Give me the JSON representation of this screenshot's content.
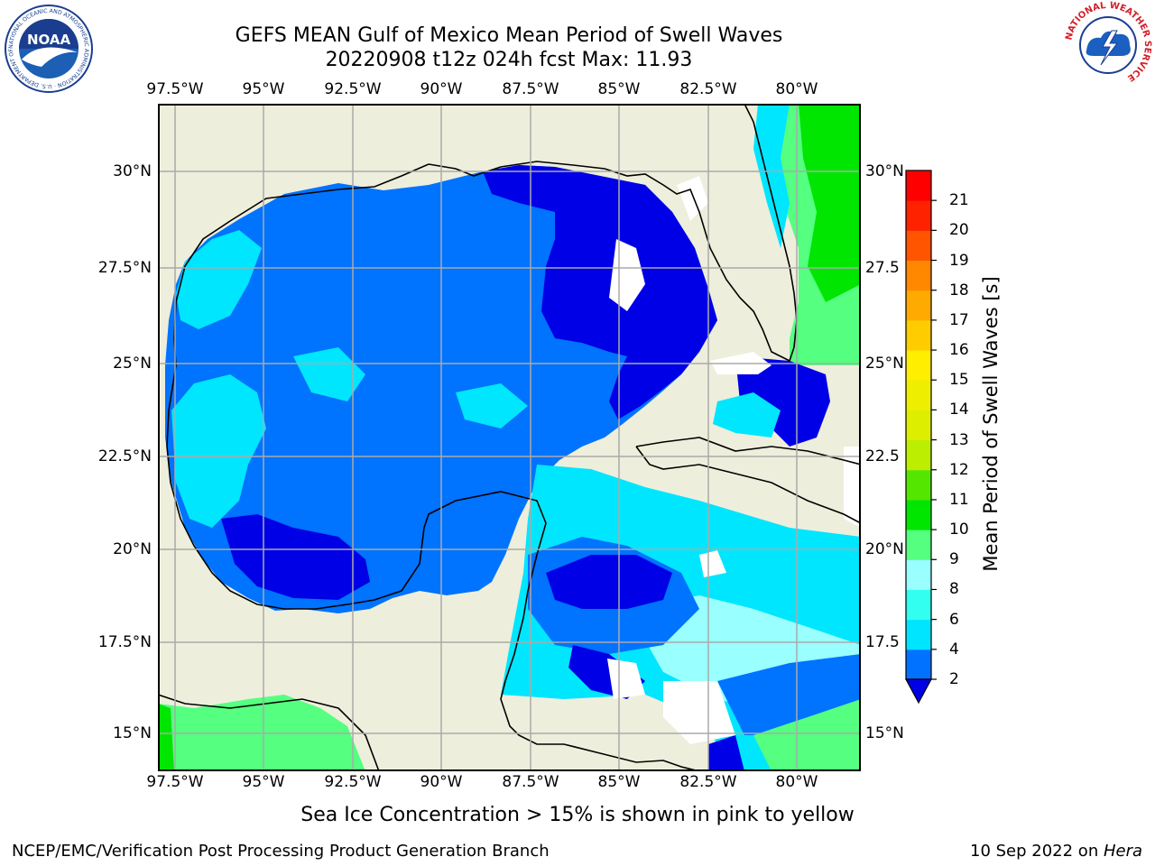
{
  "title": {
    "line1": "GEFS MEAN Gulf of Mexico Mean Period of Swell Waves",
    "line2": "20220908 t12z 024h fcst   Max: 11.93"
  },
  "map": {
    "longitude_labels": [
      "97.5°W",
      "95°W",
      "92.5°W",
      "90°W",
      "87.5°W",
      "85°W",
      "82.5°W",
      "80°W"
    ],
    "latitude_labels": [
      "30°N",
      "27.5°N",
      "25°N",
      "22.5°N",
      "20°N",
      "17.5°N",
      "15°N"
    ],
    "latitude_labels_right": [
      "30°N",
      "27.5",
      "25°N",
      "22.5",
      "20°N",
      "17.5",
      "15°N"
    ],
    "land_color": "#eeeedc",
    "missing_color": "#ffffff"
  },
  "colorbar": {
    "title": "Mean Period of Swell Waves [s]",
    "tick_labels": [
      "2",
      "4",
      "6",
      "8",
      "9",
      "10",
      "11",
      "12",
      "13",
      "14",
      "15",
      "16",
      "17",
      "18",
      "19",
      "20",
      "21"
    ],
    "colors": [
      "#0000e6",
      "#0072ff",
      "#00e5ff",
      "#33fff0",
      "#99ffff",
      "#55ff80",
      "#00e600",
      "#55e600",
      "#bbee00",
      "#ddee00",
      "#eeee00",
      "#ffee00",
      "#ffcc00",
      "#ffaa00",
      "#ff8800",
      "#ff5500",
      "#ff2200",
      "#ff0000"
    ]
  },
  "logos": {
    "noaa_text": "NOAA",
    "noaa_ring": "NATIONAL OCEANIC AND ATMOSPHERIC ADMINISTRATION · U.S. DEPARTMENT OF COMMERCE",
    "nws_ring": "NATIONAL WEATHER SERVICE"
  },
  "footnote": "Sea Ice Concentration > 15% is shown in pink to yellow",
  "credit": "NCEP/EMC/Verification Post Processing Product Generation Branch",
  "date": {
    "text": "10 Sep 2022 on ",
    "host": "Hera"
  }
}
